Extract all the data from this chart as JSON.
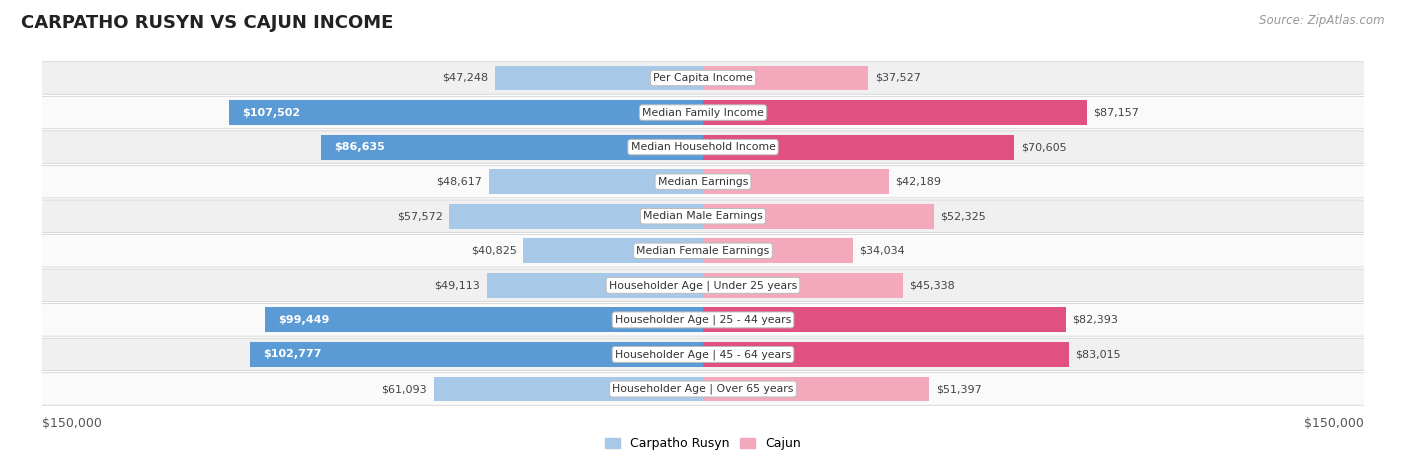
{
  "title": "CARPATHO RUSYN VS CAJUN INCOME",
  "source": "Source: ZipAtlas.com",
  "categories": [
    "Per Capita Income",
    "Median Family Income",
    "Median Household Income",
    "Median Earnings",
    "Median Male Earnings",
    "Median Female Earnings",
    "Householder Age | Under 25 years",
    "Householder Age | 25 - 44 years",
    "Householder Age | 45 - 64 years",
    "Householder Age | Over 65 years"
  ],
  "carpatho_rusyn_values": [
    47248,
    107502,
    86635,
    48617,
    57572,
    40825,
    49113,
    99449,
    102777,
    61093
  ],
  "cajun_values": [
    37527,
    87157,
    70605,
    42189,
    52325,
    34034,
    45338,
    82393,
    83015,
    51397
  ],
  "carpatho_rusyn_labels": [
    "$47,248",
    "$107,502",
    "$86,635",
    "$48,617",
    "$57,572",
    "$40,825",
    "$49,113",
    "$99,449",
    "$102,777",
    "$61,093"
  ],
  "cajun_labels": [
    "$37,527",
    "$87,157",
    "$70,605",
    "$42,189",
    "$52,325",
    "$34,034",
    "$45,338",
    "$82,393",
    "$83,015",
    "$51,397"
  ],
  "max_value": 150000,
  "blue_light": "#A8C8E8",
  "blue_dark": "#5B9BD5",
  "pink_light": "#F4A8BC",
  "pink_dark": "#E05080",
  "row_bg_odd": "#F0F0F0",
  "row_bg_even": "#FAFAFA",
  "legend_blue": "Carpatho Rusyn",
  "legend_pink": "Cajun",
  "x_tick_label": "$150,000",
  "threshold_dark": 70000
}
